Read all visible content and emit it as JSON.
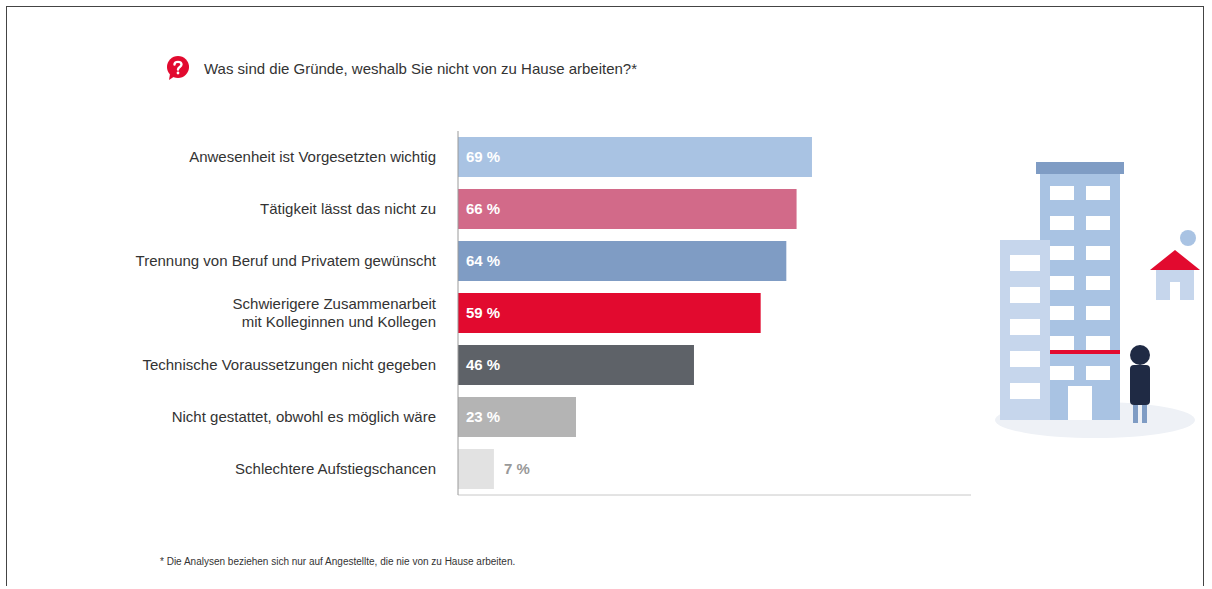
{
  "chart_data": {
    "type": "bar",
    "orientation": "horizontal",
    "title": "Was sind die Gründe, weshalb Sie nicht von zu Hause arbeiten?*",
    "annotations": [
      "* Die Analysen beziehen sich nur auf Angestellte, die nie von zu Hause arbeiten."
    ],
    "categories": [
      "Anwesenheit ist Vorgesetzten wichtig",
      "Tätigkeit lässt das nicht zu",
      "Trennung von Beruf und Privatem gewünscht",
      "Schwierigere Zusammenarbeit mit Kolleginnen und Kollegen",
      "Technische Voraussetzungen nicht gegeben",
      "Nicht gestattet, obwohl es möglich wäre",
      "Schlechtere Aufstiegschancen"
    ],
    "values": [
      69,
      66,
      64,
      59,
      46,
      23,
      7
    ],
    "value_labels": [
      "69 %",
      "66 %",
      "64 %",
      "59 %",
      "46 %",
      "23 %",
      "7 %"
    ],
    "colors": [
      "#a9c3e3",
      "#d26a89",
      "#7f9cc4",
      "#e20a2f",
      "#5e6268",
      "#b4b4b4",
      "#e2e2e2"
    ],
    "xlim": [
      0,
      100
    ],
    "xticks": [],
    "data_labels": true,
    "tick_labels": "y",
    "grid": false
  }
}
